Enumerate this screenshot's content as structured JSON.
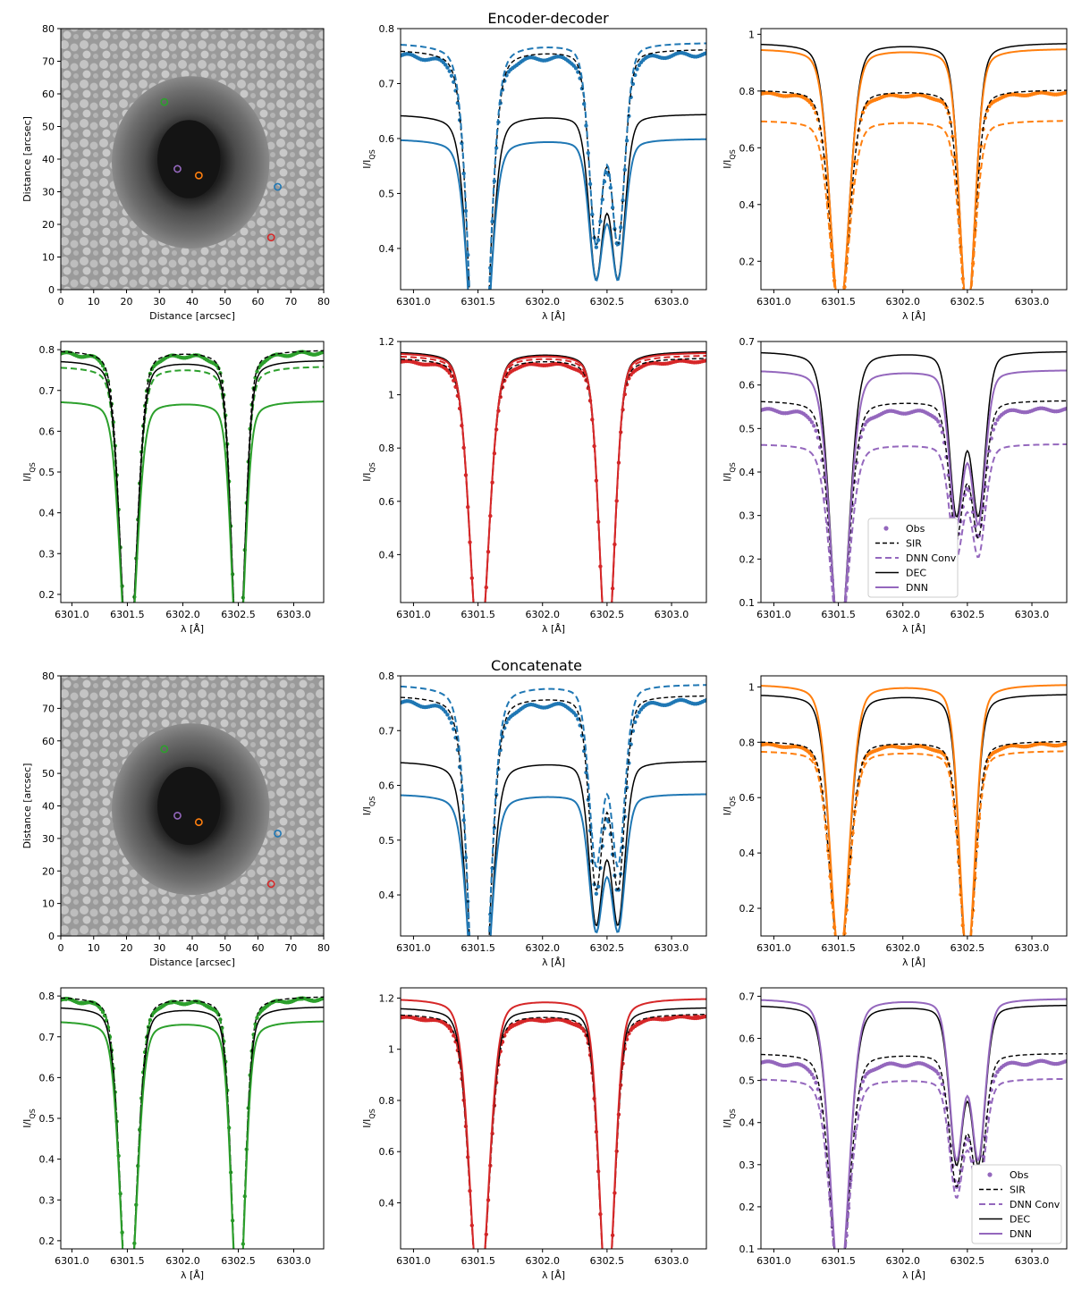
{
  "figure": {
    "title_top": "Encoder-decoder",
    "title_bottom": "Concatenate"
  },
  "colors": {
    "blue": "#1f77b4",
    "orange": "#ff7f0e",
    "green": "#2ca02c",
    "red": "#d62728",
    "purple": "#9467bd",
    "black": "#000000"
  },
  "legend": {
    "entries": [
      "Obs",
      "SIR",
      "DNN Conv",
      "DEC",
      "DNN"
    ]
  },
  "chart_data": [
    {
      "type": "image",
      "panel": "map-top",
      "xlabel": "Distance [arcsec]",
      "ylabel": "Distance [arcsec]",
      "xlim": [
        0,
        80
      ],
      "ylim": [
        0,
        80
      ],
      "xticks": [
        0,
        10,
        20,
        30,
        40,
        50,
        60,
        70,
        80
      ],
      "yticks": [
        0,
        10,
        20,
        30,
        40,
        50,
        60,
        70,
        80
      ],
      "markers": [
        {
          "color": "green",
          "x": 31.5,
          "y": 57.5
        },
        {
          "color": "purple",
          "x": 35.5,
          "y": 37.0
        },
        {
          "color": "orange",
          "x": 42.0,
          "y": 35.0
        },
        {
          "color": "blue",
          "x": 66.0,
          "y": 31.5
        },
        {
          "color": "red",
          "x": 64.0,
          "y": 16.0
        }
      ]
    },
    {
      "type": "line",
      "panel": "top-blue",
      "color": "blue",
      "xlabel": "λ [Å]",
      "ylabel": "I/I_QS",
      "xlim": [
        6300.9,
        6303.27
      ],
      "ylim": [
        0.325,
        0.8
      ],
      "xticks": [
        6301.0,
        6301.5,
        6302.0,
        6302.5,
        6303.0
      ],
      "yticks": [
        0.4,
        0.5,
        0.6,
        0.7,
        0.8
      ],
      "series": [
        {
          "name": "Obs",
          "continuum": 0.755,
          "depth1": 0.35,
          "depth2": 0.2,
          "split": true
        },
        {
          "name": "SIR",
          "continuum": 0.763,
          "depth1": 0.41,
          "depth2": 0.2,
          "split": true
        },
        {
          "name": "DNN Conv",
          "continuum": 0.775,
          "depth1": 0.37,
          "depth2": 0.22,
          "split": true
        },
        {
          "name": "DEC",
          "continuum": 0.645,
          "depth1": 0.29,
          "depth2": 0.17,
          "split": true
        },
        {
          "name": "DNN",
          "continuum": 0.6,
          "depth1": 0.21,
          "depth2": 0.12,
          "split": true
        }
      ]
    },
    {
      "type": "line",
      "panel": "top-orange",
      "color": "orange",
      "xlabel": "λ [Å]",
      "ylabel": "I/I_QS",
      "xlim": [
        6300.9,
        6303.27
      ],
      "ylim": [
        0.1,
        1.02
      ],
      "xticks": [
        6301.0,
        6301.5,
        6302.0,
        6302.5,
        6303.0
      ],
      "yticks": [
        0.2,
        0.4,
        0.6,
        0.8,
        1.0
      ],
      "series": [
        {
          "name": "Obs",
          "continuum": 0.795,
          "depth1": 0.59,
          "depth2": 0.44
        },
        {
          "name": "SIR",
          "continuum": 0.805,
          "depth1": 0.64,
          "depth2": 0.43
        },
        {
          "name": "DNN Conv",
          "continuum": 0.697,
          "depth1": 0.47,
          "depth2": 0.4
        },
        {
          "name": "DEC",
          "continuum": 0.97,
          "depth1": 0.83,
          "depth2": 0.59
        },
        {
          "name": "DNN",
          "continuum": 0.95,
          "depth1": 0.75,
          "depth2": 0.55
        }
      ]
    },
    {
      "type": "line",
      "panel": "top-green",
      "color": "green",
      "xlabel": "λ [Å]",
      "ylabel": "I/I_QS",
      "xlim": [
        6300.9,
        6303.27
      ],
      "ylim": [
        0.18,
        0.82
      ],
      "xticks": [
        6301.0,
        6301.5,
        6302.0,
        6302.5,
        6303.0
      ],
      "yticks": [
        0.2,
        0.3,
        0.4,
        0.5,
        0.6,
        0.7,
        0.8
      ],
      "series": [
        {
          "name": "Obs",
          "continuum": 0.795,
          "depth1": 0.54,
          "depth2": 0.44
        },
        {
          "name": "SIR",
          "continuum": 0.8,
          "depth1": 0.59,
          "depth2": 0.41
        },
        {
          "name": "DNN Conv",
          "continuum": 0.76,
          "depth1": 0.51,
          "depth2": 0.41
        },
        {
          "name": "DEC",
          "continuum": 0.775,
          "depth1": 0.54,
          "depth2": 0.42
        },
        {
          "name": "DNN",
          "continuum": 0.675,
          "depth1": 0.43,
          "depth2": 0.35
        }
      ]
    },
    {
      "type": "line",
      "panel": "top-red",
      "color": "red",
      "xlabel": "λ [Å]",
      "ylabel": "I/I_QS",
      "xlim": [
        6300.9,
        6303.27
      ],
      "ylim": [
        0.22,
        1.2
      ],
      "xticks": [
        6301.0,
        6301.5,
        6302.0,
        6302.5,
        6303.0
      ],
      "yticks": [
        0.4,
        0.6,
        0.8,
        1.0,
        1.2
      ],
      "series": [
        {
          "name": "Obs",
          "continuum": 1.13,
          "depth1": 0.78,
          "depth2": 0.74
        },
        {
          "name": "SIR",
          "continuum": 1.14,
          "depth1": 0.8,
          "depth2": 0.79
        },
        {
          "name": "DNN Conv",
          "continuum": 1.15,
          "depth1": 0.8,
          "depth2": 0.79
        },
        {
          "name": "DEC",
          "continuum": 1.165,
          "depth1": 0.82,
          "depth2": 0.81
        },
        {
          "name": "DNN",
          "continuum": 1.16,
          "depth1": 0.88,
          "depth2": 0.84
        }
      ]
    },
    {
      "type": "line",
      "panel": "top-purple",
      "color": "purple",
      "xlabel": "λ [Å]",
      "ylabel": "I/I_QS",
      "xlim": [
        6300.9,
        6303.27
      ],
      "ylim": [
        0.1,
        0.7
      ],
      "xticks": [
        6301.0,
        6301.5,
        6302.0,
        6302.5,
        6303.0
      ],
      "yticks": [
        0.1,
        0.2,
        0.3,
        0.4,
        0.5,
        0.6,
        0.7
      ],
      "legend_position": "lower-left",
      "series": [
        {
          "name": "Obs",
          "continuum": 0.545,
          "depth1": 0.37,
          "depth2": 0.22,
          "split": true
        },
        {
          "name": "SIR",
          "continuum": 0.565,
          "depth1": 0.41,
          "depth2": 0.25,
          "split": true
        },
        {
          "name": "DNN Conv",
          "continuum": 0.465,
          "depth1": 0.3,
          "depth2": 0.23,
          "split": true
        },
        {
          "name": "DEC",
          "continuum": 0.678,
          "depth1": 0.55,
          "depth2": 0.33,
          "split": true
        },
        {
          "name": "DNN",
          "continuum": 0.635,
          "depth1": 0.47,
          "depth2": 0.32,
          "split": true
        }
      ]
    },
    {
      "type": "image",
      "panel": "map-bottom",
      "xlabel": "Distance [arcsec]",
      "ylabel": "Distance [arcsec]",
      "xlim": [
        0,
        80
      ],
      "ylim": [
        0,
        80
      ],
      "xticks": [
        0,
        10,
        20,
        30,
        40,
        50,
        60,
        70,
        80
      ],
      "yticks": [
        0,
        10,
        20,
        30,
        40,
        50,
        60,
        70,
        80
      ],
      "markers": [
        {
          "color": "green",
          "x": 31.5,
          "y": 57.5
        },
        {
          "color": "purple",
          "x": 35.5,
          "y": 37.0
        },
        {
          "color": "orange",
          "x": 42.0,
          "y": 35.0
        },
        {
          "color": "blue",
          "x": 66.0,
          "y": 31.5
        },
        {
          "color": "red",
          "x": 64.0,
          "y": 16.0
        }
      ]
    },
    {
      "type": "line",
      "panel": "bottom-blue",
      "color": "blue",
      "xlabel": "λ [Å]",
      "ylabel": "I/I_QS",
      "xlim": [
        6300.9,
        6303.27
      ],
      "ylim": [
        0.325,
        0.8
      ],
      "xticks": [
        6301.0,
        6301.5,
        6302.0,
        6302.5,
        6303.0
      ],
      "yticks": [
        0.4,
        0.5,
        0.6,
        0.7,
        0.8
      ],
      "series": [
        {
          "name": "Obs",
          "continuum": 0.755,
          "depth1": 0.35,
          "depth2": 0.2,
          "split": true
        },
        {
          "name": "SIR",
          "continuum": 0.765,
          "depth1": 0.41,
          "depth2": 0.2,
          "split": true
        },
        {
          "name": "DNN Conv",
          "continuum": 0.785,
          "depth1": 0.39,
          "depth2": 0.15,
          "split": true
        },
        {
          "name": "DEC",
          "continuum": 0.645,
          "depth1": 0.29,
          "depth2": 0.17,
          "split": true
        },
        {
          "name": "DNN",
          "continuum": 0.585,
          "depth1": 0.19,
          "depth2": 0.12,
          "split": true
        }
      ]
    },
    {
      "type": "line",
      "panel": "bottom-orange",
      "color": "orange",
      "xlabel": "λ [Å]",
      "ylabel": "I/I_QS",
      "xlim": [
        6300.9,
        6303.27
      ],
      "ylim": [
        0.1,
        1.04
      ],
      "xticks": [
        6301.0,
        6301.5,
        6302.0,
        6302.5,
        6303.0
      ],
      "yticks": [
        0.2,
        0.4,
        0.6,
        0.8,
        1.0
      ],
      "series": [
        {
          "name": "Obs",
          "continuum": 0.795,
          "depth1": 0.57,
          "depth2": 0.41
        },
        {
          "name": "SIR",
          "continuum": 0.805,
          "depth1": 0.64,
          "depth2": 0.43
        },
        {
          "name": "DNN Conv",
          "continuum": 0.77,
          "depth1": 0.57,
          "depth2": 0.43
        },
        {
          "name": "DEC",
          "continuum": 0.975,
          "depth1": 0.83,
          "depth2": 0.59
        },
        {
          "name": "DNN",
          "continuum": 1.01,
          "depth1": 0.82,
          "depth2": 0.63
        }
      ]
    },
    {
      "type": "line",
      "panel": "bottom-green",
      "color": "green",
      "xlabel": "λ [Å]",
      "ylabel": "I/I_QS",
      "xlim": [
        6300.9,
        6303.27
      ],
      "ylim": [
        0.18,
        0.82
      ],
      "xticks": [
        6301.0,
        6301.5,
        6302.0,
        6302.5,
        6303.0
      ],
      "yticks": [
        0.2,
        0.3,
        0.4,
        0.5,
        0.6,
        0.7,
        0.8
      ],
      "series": [
        {
          "name": "Obs",
          "continuum": 0.795,
          "depth1": 0.54,
          "depth2": 0.43
        },
        {
          "name": "SIR",
          "continuum": 0.8,
          "depth1": 0.59,
          "depth2": 0.42
        },
        {
          "name": "DNN Conv",
          "continuum": 0.795,
          "depth1": 0.54,
          "depth2": 0.42
        },
        {
          "name": "DEC",
          "continuum": 0.775,
          "depth1": 0.55,
          "depth2": 0.43
        },
        {
          "name": "DNN",
          "continuum": 0.74,
          "depth1": 0.48,
          "depth2": 0.39
        }
      ]
    },
    {
      "type": "line",
      "panel": "bottom-red",
      "color": "red",
      "xlabel": "λ [Å]",
      "ylabel": "I/I_QS",
      "xlim": [
        6300.9,
        6303.27
      ],
      "ylim": [
        0.22,
        1.24
      ],
      "xticks": [
        6301.0,
        6301.5,
        6302.0,
        6302.5,
        6303.0
      ],
      "yticks": [
        0.4,
        0.6,
        0.8,
        1.0,
        1.2
      ],
      "series": [
        {
          "name": "Obs",
          "continuum": 1.13,
          "depth1": 0.79,
          "depth2": 0.74
        },
        {
          "name": "SIR",
          "continuum": 1.14,
          "depth1": 0.8,
          "depth2": 0.79
        },
        {
          "name": "DNN Conv",
          "continuum": 1.135,
          "depth1": 0.8,
          "depth2": 0.7
        },
        {
          "name": "DEC",
          "continuum": 1.165,
          "depth1": 0.82,
          "depth2": 0.81
        },
        {
          "name": "DNN",
          "continuum": 1.2,
          "depth1": 0.9,
          "depth2": 0.85
        }
      ]
    },
    {
      "type": "line",
      "panel": "bottom-purple",
      "color": "purple",
      "xlabel": "λ [Å]",
      "ylabel": "I/I_QS",
      "xlim": [
        6300.9,
        6303.27
      ],
      "ylim": [
        0.1,
        0.72
      ],
      "xticks": [
        6301.0,
        6301.5,
        6302.0,
        6302.5,
        6303.0
      ],
      "yticks": [
        0.1,
        0.2,
        0.3,
        0.4,
        0.5,
        0.6,
        0.7
      ],
      "legend_position": "lower-right",
      "series": [
        {
          "name": "Obs",
          "continuum": 0.545,
          "depth1": 0.36,
          "depth2": 0.22,
          "split": true
        },
        {
          "name": "SIR",
          "continuum": 0.565,
          "depth1": 0.41,
          "depth2": 0.25,
          "split": true
        },
        {
          "name": "DNN Conv",
          "continuum": 0.505,
          "depth1": 0.33,
          "depth2": 0.23,
          "split": true
        },
        {
          "name": "DEC",
          "continuum": 0.68,
          "depth1": 0.55,
          "depth2": 0.33,
          "split": true
        },
        {
          "name": "DNN",
          "continuum": 0.695,
          "depth1": 0.52,
          "depth2": 0.29,
          "split": true
        }
      ]
    }
  ]
}
